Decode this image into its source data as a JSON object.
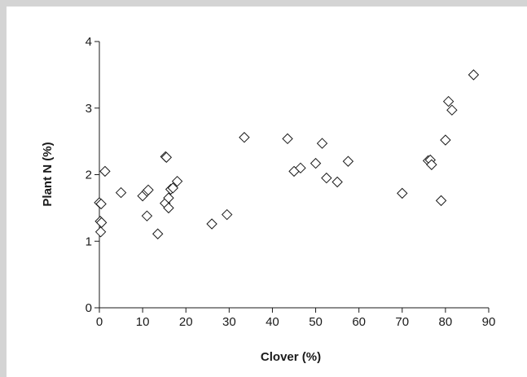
{
  "chart_data": {
    "type": "scatter",
    "title": "",
    "xlabel": "Clover (%)",
    "ylabel": "Plant N (%)",
    "xlim": [
      0,
      90
    ],
    "ylim": [
      0,
      4
    ],
    "xticks": [
      "0",
      "10",
      "20",
      "30",
      "40",
      "50",
      "60",
      "70",
      "80",
      "90"
    ],
    "yticks": [
      "0",
      "1",
      "2",
      "3",
      "4"
    ],
    "grid": false,
    "legend": "none",
    "marker": "open-diamond",
    "marker_color": "#1a1a1a",
    "series": [
      {
        "points": [
          [
            0.0,
            1.58
          ],
          [
            0.4,
            1.56
          ],
          [
            0.2,
            1.3
          ],
          [
            0.5,
            1.28
          ],
          [
            0.3,
            1.14
          ],
          [
            1.3,
            2.05
          ],
          [
            5.0,
            1.73
          ],
          [
            10.0,
            1.68
          ],
          [
            11.0,
            1.75
          ],
          [
            11.3,
            1.77
          ],
          [
            11.0,
            1.38
          ],
          [
            13.5,
            1.11
          ],
          [
            15.3,
            2.27
          ],
          [
            15.5,
            2.26
          ],
          [
            15.2,
            1.57
          ],
          [
            16.0,
            1.65
          ],
          [
            16.0,
            1.5
          ],
          [
            16.5,
            1.78
          ],
          [
            17.0,
            1.8
          ],
          [
            18.0,
            1.9
          ],
          [
            26.0,
            1.26
          ],
          [
            29.5,
            1.4
          ],
          [
            33.5,
            2.56
          ],
          [
            43.5,
            2.54
          ],
          [
            45.0,
            2.05
          ],
          [
            46.5,
            2.1
          ],
          [
            50.0,
            2.17
          ],
          [
            51.5,
            2.47
          ],
          [
            52.5,
            1.95
          ],
          [
            55.0,
            1.89
          ],
          [
            57.5,
            2.2
          ],
          [
            70.0,
            1.72
          ],
          [
            76.0,
            2.21
          ],
          [
            76.5,
            2.22
          ],
          [
            76.8,
            2.15
          ],
          [
            79.0,
            1.61
          ],
          [
            80.0,
            2.52
          ],
          [
            80.7,
            3.1
          ],
          [
            81.5,
            2.97
          ],
          [
            86.5,
            3.5
          ]
        ]
      }
    ]
  }
}
